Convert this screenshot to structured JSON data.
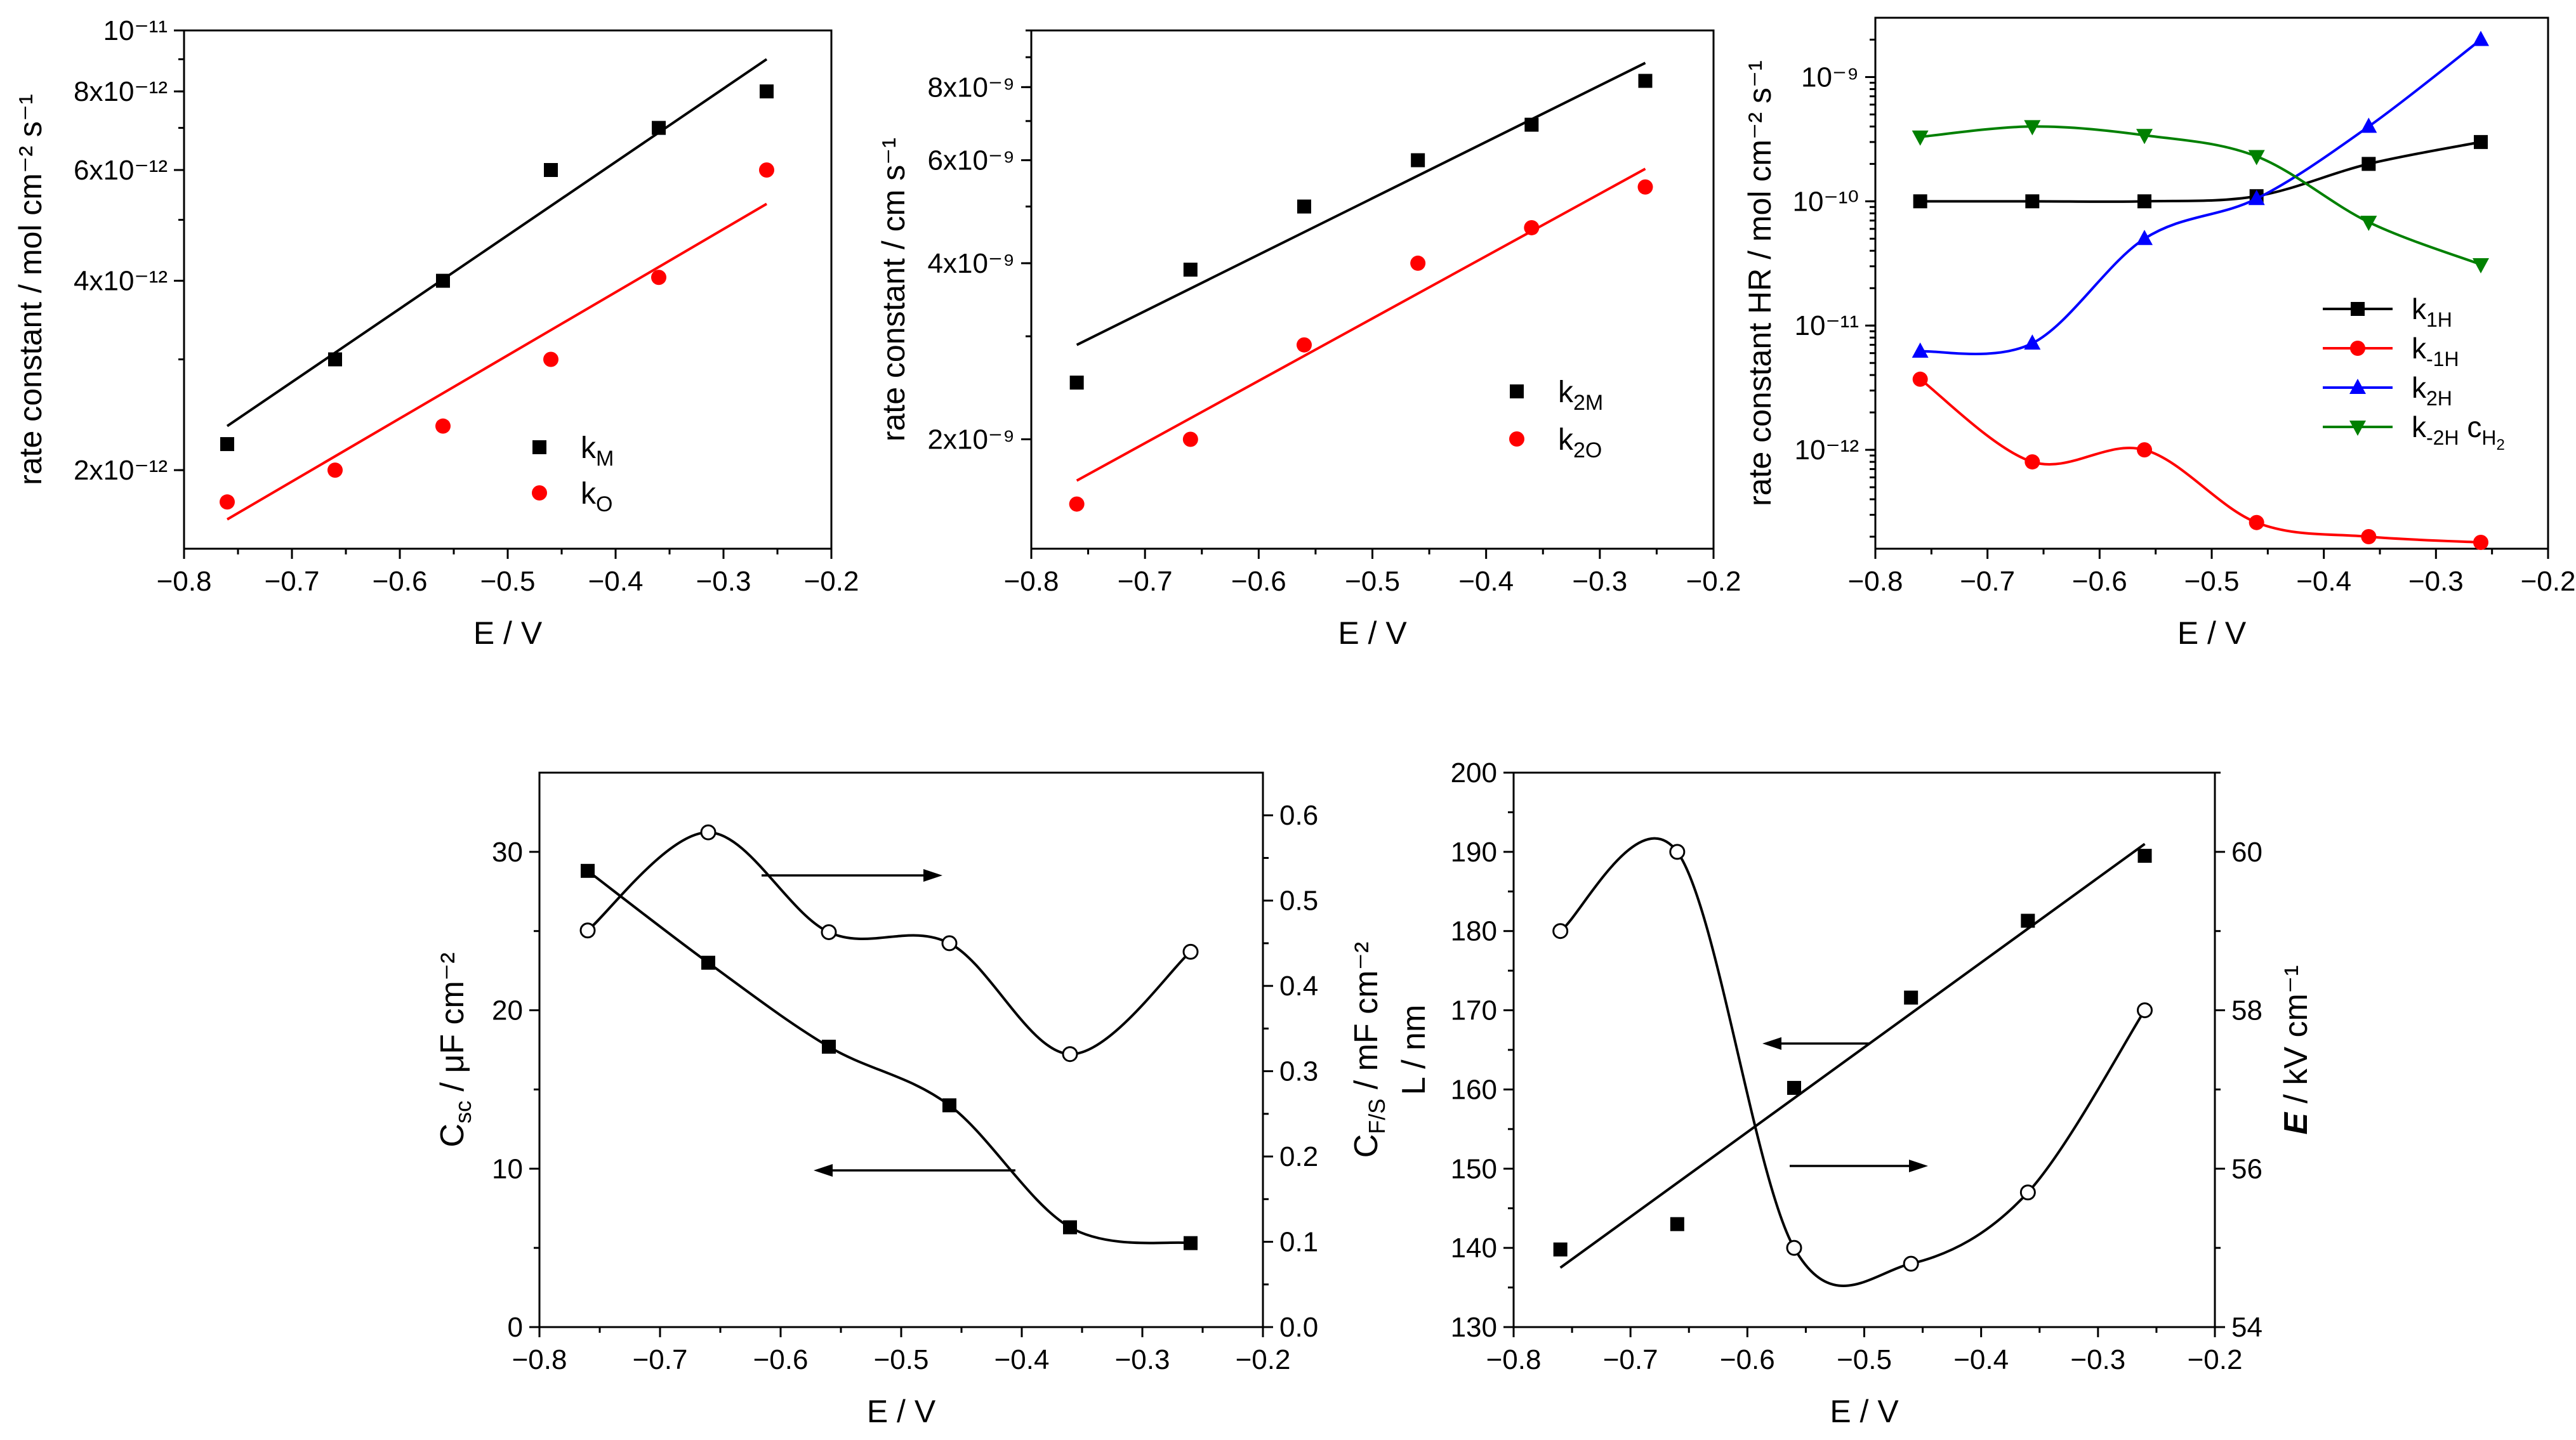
{
  "figure": {
    "colors": {
      "black": "#000000",
      "red": "#ff0000",
      "blue": "#0000ff",
      "green": "#008000"
    }
  },
  "chart_data": [
    {
      "id": "p1",
      "type": "scatter",
      "yscale": "log",
      "xlabel": "E / V",
      "ylabel": "rate constant / mol cm⁻² s⁻¹",
      "xlim": [
        -0.8,
        -0.2
      ],
      "ylim": [
        1.5e-12,
        1e-11
      ],
      "xticks": [
        "−0.8",
        "−0.7",
        "−0.6",
        "−0.5",
        "−0.4",
        "−0.3",
        "−0.2"
      ],
      "yticks": [
        "10⁻¹¹",
        "8x10⁻¹²",
        "6x10⁻¹²",
        "4x10⁻¹²",
        "2x10⁻¹²"
      ],
      "series": [
        {
          "name": "kM",
          "legend": "k",
          "sub": "M",
          "color": "#000000",
          "marker": "square",
          "x": [
            -0.76,
            -0.66,
            -0.56,
            -0.46,
            -0.36,
            -0.26
          ],
          "y": [
            2.2e-12,
            3e-12,
            4e-12,
            6e-12,
            7e-12,
            8e-12
          ],
          "fit": {
            "x": [
              -0.76,
              -0.26
            ],
            "y": [
              2.35e-12,
              9e-12
            ]
          }
        },
        {
          "name": "kO",
          "legend": "k",
          "sub": "O",
          "color": "#ff0000",
          "marker": "circle",
          "x": [
            -0.76,
            -0.66,
            -0.56,
            -0.46,
            -0.36,
            -0.26
          ],
          "y": [
            1.78e-12,
            2e-12,
            2.35e-12,
            3e-12,
            4.05e-12,
            6e-12
          ],
          "fit": {
            "x": [
              -0.76,
              -0.26
            ],
            "y": [
              1.67e-12,
              5.3e-12
            ]
          }
        }
      ]
    },
    {
      "id": "p2",
      "type": "scatter",
      "yscale": "log",
      "xlabel": "E / V",
      "ylabel": "rate constant  / cm s⁻¹",
      "xlim": [
        -0.8,
        -0.2
      ],
      "ylim": [
        1.3e-09,
        1e-08
      ],
      "xticks": [
        "−0.8",
        "−0.7",
        "−0.6",
        "−0.5",
        "−0.4",
        "−0.3",
        "−0.2"
      ],
      "yticks": [
        "8x10⁻⁹",
        "6x10⁻⁹",
        "4x10⁻⁹",
        "2x10⁻⁹"
      ],
      "series": [
        {
          "name": "k2M",
          "legend": "k",
          "sub": "2M",
          "color": "#000000",
          "marker": "square",
          "x": [
            -0.76,
            -0.66,
            -0.56,
            -0.46,
            -0.36,
            -0.26
          ],
          "y": [
            2.5e-09,
            3.9e-09,
            5e-09,
            6e-09,
            6.9e-09,
            8.2e-09
          ],
          "fit": {
            "x": [
              -0.76,
              -0.26
            ],
            "y": [
              2.9e-09,
              8.8e-09
            ]
          }
        },
        {
          "name": "k2O",
          "legend": "k",
          "sub": "2O",
          "color": "#ff0000",
          "marker": "circle",
          "x": [
            -0.76,
            -0.66,
            -0.56,
            -0.46,
            -0.36,
            -0.26
          ],
          "y": [
            1.55e-09,
            2e-09,
            2.9e-09,
            4e-09,
            4.6e-09,
            5.4e-09
          ],
          "fit": {
            "x": [
              -0.76,
              -0.26
            ],
            "y": [
              1.7e-09,
              5.8e-09
            ]
          }
        }
      ]
    },
    {
      "id": "p3",
      "type": "line",
      "yscale": "log",
      "xlabel": "E / V",
      "ylabel": "rate constant HR / mol cm⁻² s⁻¹",
      "xlim": [
        -0.8,
        -0.2
      ],
      "ylim": [
        1.6e-13,
        3e-09
      ],
      "xticks": [
        "−0.8",
        "−0.7",
        "−0.6",
        "−0.5",
        "−0.4",
        "−0.3",
        "−0.2"
      ],
      "yticks": [
        "10⁻⁹",
        "10⁻¹⁰",
        "10⁻¹¹",
        "10⁻¹²"
      ],
      "series": [
        {
          "name": "k1H",
          "legend": "k",
          "sub": "1H",
          "color": "#000000",
          "marker": "square",
          "x": [
            -0.76,
            -0.66,
            -0.56,
            -0.46,
            -0.36,
            -0.26
          ],
          "y": [
            1e-10,
            1e-10,
            1e-10,
            1.1e-10,
            2e-10,
            3e-10
          ]
        },
        {
          "name": "k-1H",
          "legend": "k",
          "sub": "-1H",
          "color": "#ff0000",
          "marker": "circle",
          "x": [
            -0.76,
            -0.66,
            -0.56,
            -0.46,
            -0.36,
            -0.26
          ],
          "y": [
            3.7e-12,
            8e-13,
            1e-12,
            2.6e-13,
            2e-13,
            1.8e-13
          ]
        },
        {
          "name": "k2H",
          "legend": "k",
          "sub": "2H",
          "color": "#0000ff",
          "marker": "triangle-up",
          "x": [
            -0.76,
            -0.66,
            -0.56,
            -0.46,
            -0.36,
            -0.26
          ],
          "y": [
            6.2e-12,
            7.2e-12,
            5e-11,
            1.05e-10,
            4e-10,
            2e-09
          ]
        },
        {
          "name": "k-2H cH2",
          "legend": "k",
          "sub": "-2H",
          "extra": "c",
          "extra_sub": "H",
          "extra_subsub": "2",
          "color": "#008000",
          "marker": "triangle-down",
          "x": [
            -0.76,
            -0.66,
            -0.56,
            -0.46,
            -0.36,
            -0.26
          ],
          "y": [
            3.3e-10,
            4e-10,
            3.4e-10,
            2.3e-10,
            6.8e-11,
            3.1e-11
          ]
        }
      ]
    },
    {
      "id": "p4",
      "type": "scatter",
      "yscale": "linear",
      "xlabel": "E / V",
      "ylabel": "C",
      "ylabel_sub": "sc",
      "ylabel_rest": " / μF cm⁻²",
      "ylabel2": "C",
      "ylabel2_sub": "F/S",
      "ylabel2_rest": " / mF cm⁻²",
      "xlim": [
        -0.8,
        -0.2
      ],
      "ylim": [
        0,
        35
      ],
      "y2lim": [
        0,
        0.65
      ],
      "xticks": [
        "−0.8",
        "−0.7",
        "−0.6",
        "−0.5",
        "−0.4",
        "−0.3",
        "−0.2"
      ],
      "yticks": [
        "0",
        "10",
        "20",
        "30"
      ],
      "y2ticks": [
        "0.0",
        "0.1",
        "0.2",
        "0.3",
        "0.4",
        "0.5",
        "0.6"
      ],
      "series": [
        {
          "name": "Csc",
          "axis": "left",
          "color": "#000000",
          "marker": "square",
          "x": [
            -0.76,
            -0.66,
            -0.56,
            -0.46,
            -0.36,
            -0.26
          ],
          "y": [
            28.8,
            23.0,
            17.7,
            14.0,
            6.3,
            5.3
          ]
        },
        {
          "name": "CF/S",
          "axis": "right",
          "color": "#000000",
          "marker": "open-circle",
          "x": [
            -0.76,
            -0.66,
            -0.56,
            -0.46,
            -0.36,
            -0.26
          ],
          "y": [
            0.465,
            0.58,
            0.463,
            0.45,
            0.32,
            0.44
          ]
        }
      ]
    },
    {
      "id": "p5",
      "type": "scatter",
      "yscale": "linear",
      "xlabel": "E / V",
      "ylabel": "L / nm",
      "ylabel2": "E",
      "ylabel2_rest": " / kV cm⁻¹",
      "xlim": [
        -0.8,
        -0.2
      ],
      "ylim": [
        130,
        200
      ],
      "y2lim": [
        54,
        61
      ],
      "xticks": [
        "−0.8",
        "−0.7",
        "−0.6",
        "−0.5",
        "−0.4",
        "−0.3",
        "−0.2"
      ],
      "yticks": [
        "130",
        "140",
        "150",
        "160",
        "170",
        "180",
        "190",
        "200"
      ],
      "y2ticks": [
        "54",
        "56",
        "58",
        "60"
      ],
      "series": [
        {
          "name": "L",
          "axis": "left",
          "color": "#000000",
          "marker": "square",
          "x": [
            -0.76,
            -0.66,
            -0.56,
            -0.46,
            -0.36,
            -0.26
          ],
          "y": [
            139.8,
            143.0,
            160.2,
            171.6,
            181.3,
            189.5
          ],
          "fit": {
            "x": [
              -0.76,
              -0.26
            ],
            "y": [
              137.5,
              191.0
            ]
          }
        },
        {
          "name": "E",
          "axis": "right",
          "color": "#000000",
          "marker": "open-circle",
          "x": [
            -0.76,
            -0.66,
            -0.56,
            -0.46,
            -0.36,
            -0.26
          ],
          "y": [
            59.0,
            60.0,
            55.0,
            54.8,
            55.7,
            58.0
          ]
        }
      ]
    }
  ]
}
